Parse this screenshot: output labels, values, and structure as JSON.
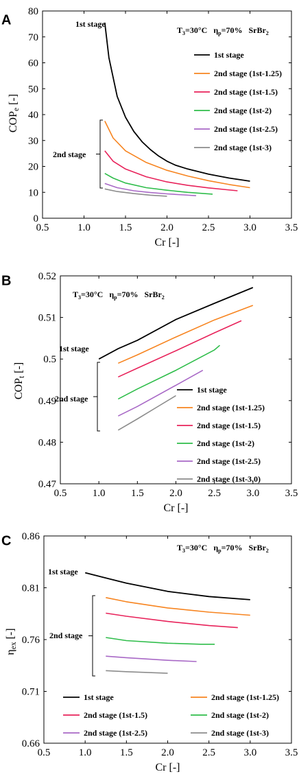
{
  "chart_data": [
    {
      "panel_label": "A",
      "type": "line",
      "xlabel": "Cr [-]",
      "ylabel_main": "COP",
      "ylabel_sub": "e",
      "ylabel_tail": " [-]",
      "condition": {
        "t_main": "T",
        "t_sub": "3",
        "t_val": "=30°C",
        "eta_main": "η",
        "eta_sub": "p",
        "eta_val": "=70%",
        "mat_main": "SrBr",
        "mat_sub": "2"
      },
      "xlim": [
        0.5,
        3.5
      ],
      "ylim": [
        0,
        80
      ],
      "xticks": [
        "0.5",
        "1.0",
        "1.5",
        "2.0",
        "2.5",
        "3.0",
        "3.5"
      ],
      "yticks": [
        "0",
        "10",
        "20",
        "30",
        "40",
        "50",
        "60",
        "70",
        "80"
      ],
      "annotations": {
        "first": "1st stage",
        "second": "2nd stage"
      },
      "legend_position": "right",
      "series": [
        {
          "name": "1st stage",
          "color": "#000000",
          "x": [
            1.25,
            1.3,
            1.4,
            1.5,
            1.6,
            1.7,
            1.8,
            1.9,
            2.0,
            2.1,
            2.25,
            2.5,
            2.75,
            3.0
          ],
          "y": [
            75.5,
            62,
            47,
            39,
            33.5,
            29.5,
            26.5,
            24,
            22,
            20.5,
            19,
            17,
            15.5,
            14.3
          ]
        },
        {
          "name": "2nd stage (1st-1.25)",
          "color": "#f7841f",
          "x": [
            1.25,
            1.35,
            1.5,
            1.75,
            2.0,
            2.25,
            2.5,
            2.75,
            3.0
          ],
          "y": [
            37.5,
            31,
            26,
            21.5,
            18.5,
            16.3,
            14.5,
            13,
            11.8
          ]
        },
        {
          "name": "2nd stage (1st-1.5)",
          "color": "#e8225a",
          "x": [
            1.25,
            1.35,
            1.5,
            1.75,
            2.0,
            2.25,
            2.5,
            2.85
          ],
          "y": [
            26,
            22,
            19,
            16,
            14,
            12.7,
            11.7,
            10.6
          ]
        },
        {
          "name": "2nd stage (1st-2)",
          "color": "#2ebd4a",
          "x": [
            1.25,
            1.35,
            1.5,
            1.75,
            2.0,
            2.25,
            2.55
          ],
          "y": [
            17.3,
            15.5,
            13.6,
            11.8,
            10.8,
            10,
            9.3
          ]
        },
        {
          "name": "2nd stage (1st-2.5)",
          "color": "#a868c6",
          "x": [
            1.25,
            1.4,
            1.6,
            1.8,
            2.0,
            2.2,
            2.35
          ],
          "y": [
            13.4,
            11.8,
            10.6,
            9.9,
            9.4,
            9,
            8.7
          ]
        },
        {
          "name": "2nd stage (1st-3)",
          "color": "#8c8c8c",
          "x": [
            1.25,
            1.4,
            1.6,
            1.8,
            2.0
          ],
          "y": [
            11.3,
            10.3,
            9.5,
            8.9,
            8.5
          ]
        }
      ]
    },
    {
      "panel_label": "B",
      "type": "line",
      "xlabel": "Cr [-]",
      "ylabel_main": "COP",
      "ylabel_sub": "t",
      "ylabel_tail": " [-]",
      "condition": {
        "t_main": "T",
        "t_sub": "3",
        "t_val": "=30°C",
        "eta_main": "η",
        "eta_sub": "p",
        "eta_val": "=70%",
        "mat_main": "SrBr",
        "mat_sub": "2"
      },
      "xlim": [
        0.5,
        3.5
      ],
      "ylim": [
        0.47,
        0.52
      ],
      "xticks": [
        "0.5",
        "1.0",
        "1.5",
        "2.0",
        "2.5",
        "3.0",
        "3.5"
      ],
      "yticks": [
        "0.47",
        "0.48",
        "0.49",
        "0.5",
        "0.51",
        "0.52"
      ],
      "annotations": {
        "first": "1st stage",
        "second": "2nd stage"
      },
      "legend_position": "bottom-right",
      "series": [
        {
          "name": "1st stage",
          "color": "#000000",
          "x": [
            1.0,
            1.25,
            1.5,
            2.0,
            2.5,
            3.0
          ],
          "y": [
            0.5,
            0.5025,
            0.5045,
            0.5095,
            0.5134,
            0.5172
          ]
        },
        {
          "name": "2nd stage (1st-1.25)",
          "color": "#f7841f",
          "x": [
            1.25,
            1.5,
            2.0,
            2.5,
            3.0
          ],
          "y": [
            0.499,
            0.501,
            0.5053,
            0.5094,
            0.5129
          ]
        },
        {
          "name": "2nd stage (1st-1.5)",
          "color": "#e8225a",
          "x": [
            1.25,
            1.5,
            2.0,
            2.5,
            2.85
          ],
          "y": [
            0.4957,
            0.4978,
            0.502,
            0.5063,
            0.5092
          ]
        },
        {
          "name": "2nd stage (1st-2)",
          "color": "#2ebd4a",
          "x": [
            1.25,
            1.5,
            2.0,
            2.5,
            2.57
          ],
          "y": [
            0.4904,
            0.4928,
            0.4973,
            0.5022,
            0.5033
          ]
        },
        {
          "name": "2nd stage (1st-2.5)",
          "color": "#a868c6",
          "x": [
            1.25,
            1.5,
            2.0,
            2.35
          ],
          "y": [
            0.4863,
            0.4886,
            0.4937,
            0.4973
          ]
        },
        {
          "name": "2nd stage (1st-3.0)",
          "color": "#8c8c8c",
          "x": [
            1.25,
            1.5,
            1.75,
            2.0
          ],
          "y": [
            0.4829,
            0.4856,
            0.4884,
            0.4912
          ]
        }
      ]
    },
    {
      "panel_label": "C",
      "type": "line",
      "xlabel": "Cr [-]",
      "ylabel_main": "η",
      "ylabel_sub": "ex",
      "ylabel_tail": " [-]",
      "condition": {
        "t_main": "T",
        "t_sub": "3",
        "t_val": "=30°C",
        "eta_main": "η",
        "eta_sub": "p",
        "eta_val": "=70%",
        "mat_main": "SrBr",
        "mat_sub": "2"
      },
      "xlim": [
        0.5,
        3.5
      ],
      "ylim": [
        0.66,
        0.86
      ],
      "xticks": [
        "0.5",
        "1.0",
        "1.5",
        "2.0",
        "2.5",
        "3.0",
        "3.5"
      ],
      "yticks": [
        "0.66",
        "0.71",
        "0.76",
        "0.81",
        "0.86"
      ],
      "annotations": {
        "first": "1st stage",
        "second": "2nd stage"
      },
      "legend_position": "bottom",
      "series": [
        {
          "name": "1st stage",
          "color": "#000000",
          "x": [
            1.0,
            1.25,
            1.5,
            2.0,
            2.5,
            3.0
          ],
          "y": [
            0.8245,
            0.8195,
            0.8145,
            0.8065,
            0.8015,
            0.7985
          ]
        },
        {
          "name": "2nd stage (1st-1.25)",
          "color": "#f7841f",
          "x": [
            1.25,
            1.5,
            2.0,
            2.5,
            3.0
          ],
          "y": [
            0.8005,
            0.7965,
            0.7905,
            0.7865,
            0.7835
          ]
        },
        {
          "name": "2nd stage (1st-1.5)",
          "color": "#e8225a",
          "x": [
            1.25,
            1.5,
            2.0,
            2.5,
            2.85
          ],
          "y": [
            0.7855,
            0.7825,
            0.7775,
            0.7735,
            0.7715
          ]
        },
        {
          "name": "2nd stage (1st-2)",
          "color": "#2ebd4a",
          "x": [
            1.25,
            1.5,
            2.0,
            2.4,
            2.57
          ],
          "y": [
            0.762,
            0.759,
            0.7565,
            0.7555,
            0.7555
          ]
        },
        {
          "name": "2nd stage (1st-2.5)",
          "color": "#a868c6",
          "x": [
            1.25,
            1.5,
            2.0,
            2.35
          ],
          "y": [
            0.744,
            0.7425,
            0.74,
            0.7388
          ]
        },
        {
          "name": "2nd stage (1st-3)",
          "color": "#8c8c8c",
          "x": [
            1.25,
            1.5,
            1.75,
            2.0
          ],
          "y": [
            0.73,
            0.729,
            0.7283,
            0.7275
          ]
        }
      ]
    }
  ]
}
